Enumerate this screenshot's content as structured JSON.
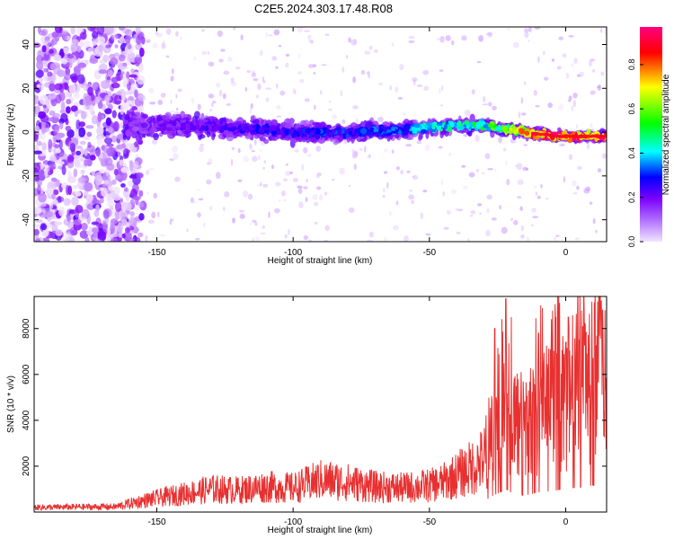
{
  "title": "C2E5.2024.303.17.48.R08",
  "chart_data": [
    {
      "type": "heatmap",
      "xlabel": "Height of straight line (km)",
      "ylabel": "Frequency (Hz)",
      "xlim": [
        -195,
        15
      ],
      "ylim": [
        -50,
        48
      ],
      "x_ticks": [
        "-150",
        "-100",
        "-50",
        "0"
      ],
      "y_ticks": [
        "-40",
        "-20",
        "0",
        "20",
        "40"
      ],
      "colorbar": {
        "label": "Normalized spectral amplitude",
        "range": [
          0,
          0.97
        ],
        "ticks": [
          "0.0",
          "0.2",
          "0.4",
          "0.6",
          "0.8"
        ],
        "colormap": [
          "#f2e4ff",
          "#7b00ff",
          "#0000ff",
          "#00ffff",
          "#00ff00",
          "#ffff00",
          "#ff0000",
          "#ff0080"
        ]
      },
      "ridge": [
        {
          "x": -160,
          "f": 3,
          "amp": 0.15
        },
        {
          "x": -150,
          "f": 3,
          "amp": 0.2
        },
        {
          "x": -120,
          "f": 2,
          "amp": 0.25
        },
        {
          "x": -100,
          "f": 0,
          "amp": 0.3
        },
        {
          "x": -80,
          "f": 0,
          "amp": 0.3
        },
        {
          "x": -60,
          "f": 1,
          "amp": 0.35
        },
        {
          "x": -45,
          "f": 3,
          "amp": 0.45
        },
        {
          "x": -30,
          "f": 3,
          "amp": 0.5
        },
        {
          "x": -20,
          "f": 1,
          "amp": 0.65
        },
        {
          "x": -10,
          "f": -1,
          "amp": 0.9
        },
        {
          "x": 0,
          "f": -2,
          "amp": 0.92
        },
        {
          "x": 13,
          "f": -2,
          "amp": 0.95
        }
      ]
    },
    {
      "type": "line",
      "xlabel": "Height of straight line (km)",
      "ylabel": "SNR (10 * v/v)",
      "xlim": [
        -195,
        15
      ],
      "ylim": [
        0,
        9400
      ],
      "x_ticks": [
        "-150",
        "-100",
        "-50",
        "0"
      ],
      "y_ticks": [
        "2000",
        "4000",
        "6000",
        "8000"
      ],
      "color": "#e83030",
      "series": [
        {
          "x": [
            -195,
            -180,
            -165,
            -157,
            -150,
            -140,
            -130,
            -120,
            -110,
            -100,
            -90,
            -80,
            -70,
            -60,
            -50,
            -45,
            -40,
            -35,
            -30,
            -27,
            -25,
            -22,
            -20,
            -15,
            -10,
            -5,
            0,
            5,
            10,
            13,
            15
          ],
          "y": [
            200,
            220,
            230,
            450,
            600,
            800,
            1000,
            950,
            1100,
            1050,
            1400,
            1300,
            1100,
            1050,
            1150,
            1300,
            1600,
            1900,
            2300,
            3500,
            4000,
            5000,
            4200,
            3600,
            4300,
            4600,
            5000,
            5400,
            5800,
            6000,
            6200
          ],
          "peaks": [
            {
              "x": -22,
              "y": 9300
            },
            {
              "x": -26,
              "y": 8000
            },
            {
              "x": 1,
              "y": 8500
            },
            {
              "x": 13,
              "y": 9200
            },
            {
              "x": 5,
              "y": 7500
            },
            {
              "x": -10,
              "y": 7800
            }
          ]
        }
      ]
    }
  ]
}
